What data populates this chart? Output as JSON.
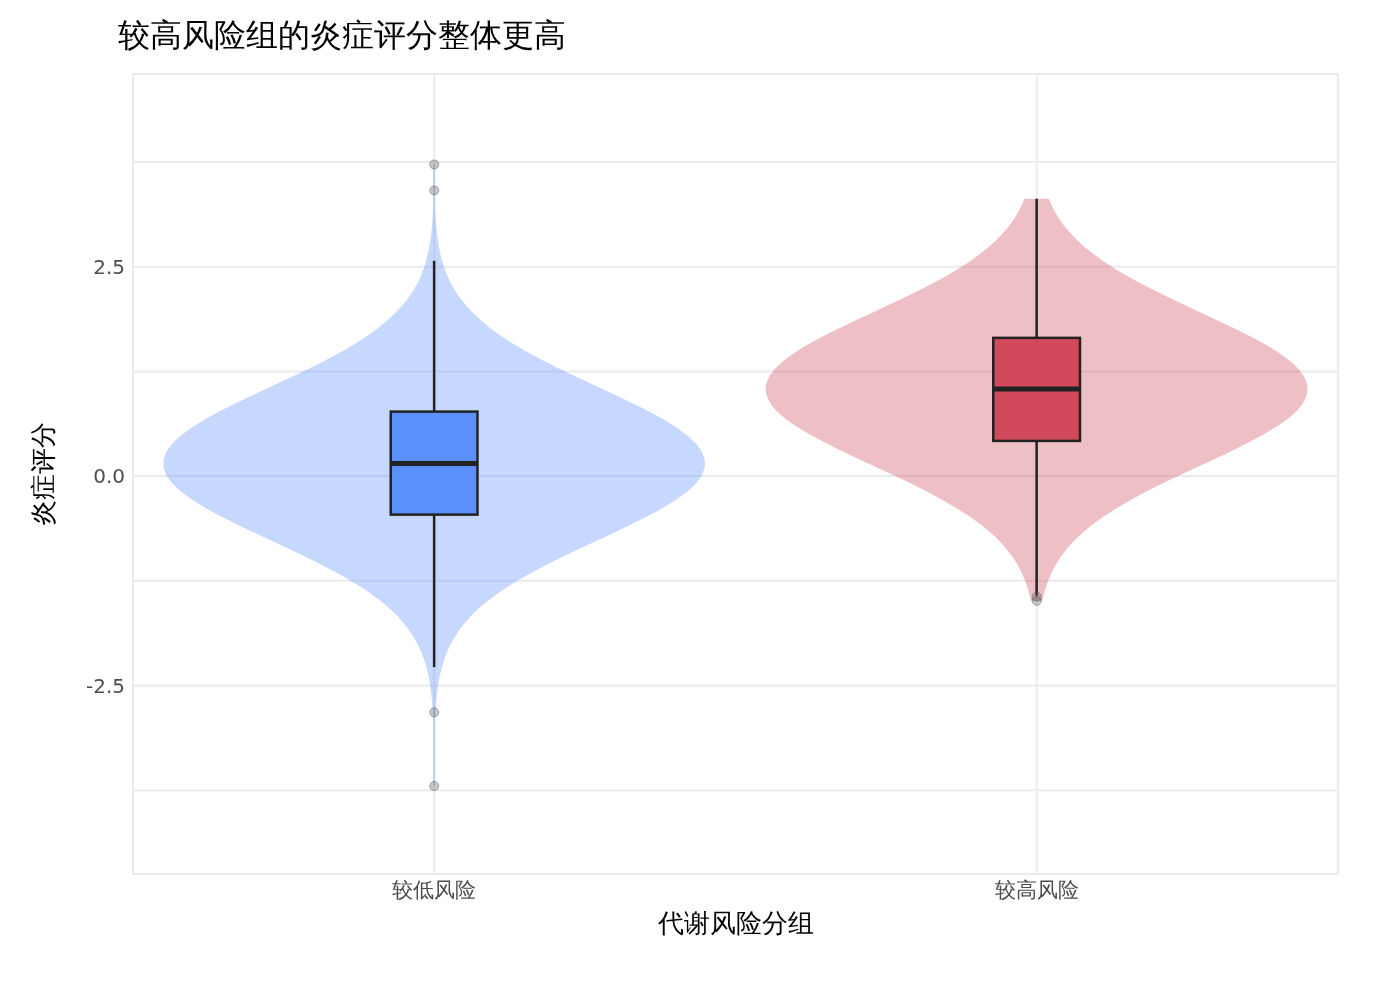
{
  "chart_data": {
    "type": "box",
    "title": "较高风险组的炎症评分整体更高",
    "xlabel": "代谢风险分组",
    "ylabel": "炎症评分",
    "categories": [
      "较低风险",
      "较高风险"
    ],
    "colors": [
      "#5b8ff9",
      "#d1495b"
    ],
    "boxes": [
      {
        "low": -2.28,
        "q1": -0.46,
        "median": 0.15,
        "q3": 0.77,
        "high": 2.57,
        "outliers": [
          3.72,
          3.41,
          -2.82,
          -3.7
        ]
      },
      {
        "low": -1.43,
        "q1": 0.42,
        "median": 1.04,
        "q3": 1.65,
        "high": 3.31,
        "outliers": [
          -1.44,
          -1.49
        ]
      }
    ],
    "ylim": [
      -4.75,
      4.8
    ],
    "yticks": [
      {
        "value": -3.75,
        "label": null
      },
      {
        "value": -2.5,
        "label": "-2.5"
      },
      {
        "value": -1.25,
        "label": null
      },
      {
        "value": 0,
        "label": "0.0"
      },
      {
        "value": 1.25,
        "label": null
      },
      {
        "value": 2.5,
        "label": "2.5"
      },
      {
        "value": 3.75,
        "label": null
      }
    ],
    "grid": true,
    "legend": false
  }
}
